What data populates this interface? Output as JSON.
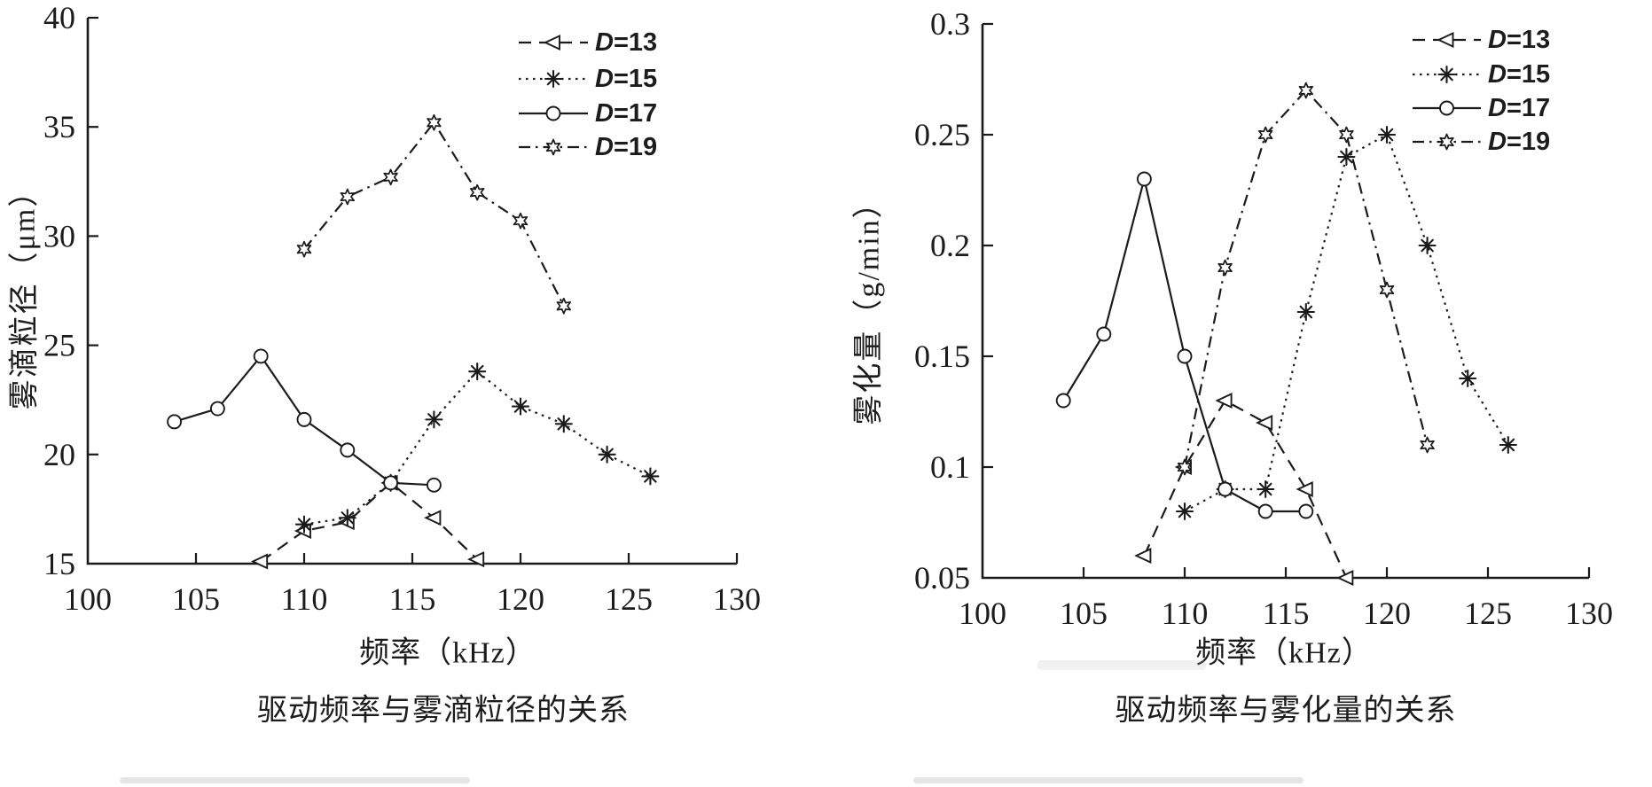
{
  "page": {
    "background": "#ffffff"
  },
  "colors": {
    "ink": "#1b1b1b",
    "text": "#1c1c1c"
  },
  "chart_data": [
    {
      "id": "droplet-size-vs-frequency",
      "type": "line",
      "title": "驱动频率与雾滴粒径的关系",
      "xlabel": "频率（kHz）",
      "ylabel": "雾滴粒径（μm）",
      "xlim": [
        100,
        130
      ],
      "ylim": [
        15,
        40
      ],
      "xticks": [
        100,
        105,
        110,
        115,
        120,
        125,
        130
      ],
      "xtick_labels": [
        "100",
        "105",
        "110",
        "115",
        "120",
        "125",
        "130"
      ],
      "yticks": [
        15,
        20,
        25,
        30,
        35,
        40
      ],
      "ytick_labels": [
        "15",
        "20",
        "25",
        "30",
        "35",
        "40"
      ],
      "grid": false,
      "legend_position": "top-right-inside",
      "legend_items": [
        "D=13",
        "D=15",
        "D=17",
        "D=19"
      ],
      "series": [
        {
          "name": "D=13",
          "marker": "triangle-left",
          "linestyle": "dashed",
          "points": [
            [
              108,
              15.1
            ],
            [
              110,
              16.5
            ],
            [
              112,
              16.9
            ],
            [
              114,
              18.7
            ],
            [
              116,
              17.1
            ],
            [
              118,
              15.2
            ]
          ]
        },
        {
          "name": "D=15",
          "marker": "asterisk",
          "linestyle": "dotted",
          "points": [
            [
              110,
              16.8
            ],
            [
              112,
              17.1
            ],
            [
              114,
              18.7
            ],
            [
              116,
              21.6
            ],
            [
              118,
              23.8
            ],
            [
              120,
              22.2
            ],
            [
              122,
              21.4
            ],
            [
              124,
              20.0
            ],
            [
              126,
              19.0
            ]
          ]
        },
        {
          "name": "D=17",
          "marker": "circle",
          "linestyle": "solid",
          "points": [
            [
              104,
              21.5
            ],
            [
              106,
              22.1
            ],
            [
              108,
              24.5
            ],
            [
              110,
              21.6
            ],
            [
              112,
              20.2
            ],
            [
              114,
              18.7
            ],
            [
              116,
              18.6
            ]
          ]
        },
        {
          "name": "D=19",
          "marker": "hexagram",
          "linestyle": "dashdot",
          "points": [
            [
              110,
              29.4
            ],
            [
              112,
              31.8
            ],
            [
              114,
              32.7
            ],
            [
              116,
              35.2
            ],
            [
              118,
              32.0
            ],
            [
              120,
              30.7
            ],
            [
              122,
              26.8
            ]
          ]
        }
      ]
    },
    {
      "id": "atomization-rate-vs-frequency",
      "type": "line",
      "title": "驱动频率与雾化量的关系",
      "xlabel": "频率（kHz）",
      "ylabel": "雾化量（g/min）",
      "xlim": [
        100,
        130
      ],
      "ylim": [
        0.05,
        0.3
      ],
      "xticks": [
        100,
        105,
        110,
        115,
        120,
        125,
        130
      ],
      "xtick_labels": [
        "100",
        "105",
        "110",
        "115",
        "120",
        "125",
        "130"
      ],
      "yticks": [
        0.05,
        0.1,
        0.15,
        0.2,
        0.25,
        0.3
      ],
      "ytick_labels": [
        "0.05",
        "0.1",
        "0.15",
        "0.2",
        "0.25",
        "0.3"
      ],
      "grid": false,
      "legend_position": "top-right-inside",
      "legend_items": [
        "D=13",
        "D=15",
        "D=17",
        "D=19"
      ],
      "series": [
        {
          "name": "D=13",
          "marker": "triangle-left",
          "linestyle": "dashed",
          "points": [
            [
              108,
              0.06
            ],
            [
              110,
              0.1
            ],
            [
              112,
              0.13
            ],
            [
              114,
              0.12
            ],
            [
              116,
              0.09
            ],
            [
              118,
              0.05
            ]
          ]
        },
        {
          "name": "D=15",
          "marker": "asterisk",
          "linestyle": "dotted",
          "points": [
            [
              110,
              0.08
            ],
            [
              112,
              0.09
            ],
            [
              114,
              0.09
            ],
            [
              116,
              0.17
            ],
            [
              118,
              0.24
            ],
            [
              120,
              0.25
            ],
            [
              122,
              0.2
            ],
            [
              124,
              0.14
            ],
            [
              126,
              0.11
            ]
          ]
        },
        {
          "name": "D=17",
          "marker": "circle",
          "linestyle": "solid",
          "points": [
            [
              104,
              0.13
            ],
            [
              106,
              0.16
            ],
            [
              108,
              0.23
            ],
            [
              110,
              0.15
            ],
            [
              112,
              0.09
            ],
            [
              114,
              0.08
            ],
            [
              116,
              0.08
            ]
          ]
        },
        {
          "name": "D=19",
          "marker": "hexagram",
          "linestyle": "dashdot",
          "points": [
            [
              110,
              0.1
            ],
            [
              112,
              0.19
            ],
            [
              114,
              0.25
            ],
            [
              116,
              0.27
            ],
            [
              118,
              0.25
            ],
            [
              120,
              0.18
            ],
            [
              122,
              0.11
            ]
          ]
        }
      ]
    }
  ]
}
